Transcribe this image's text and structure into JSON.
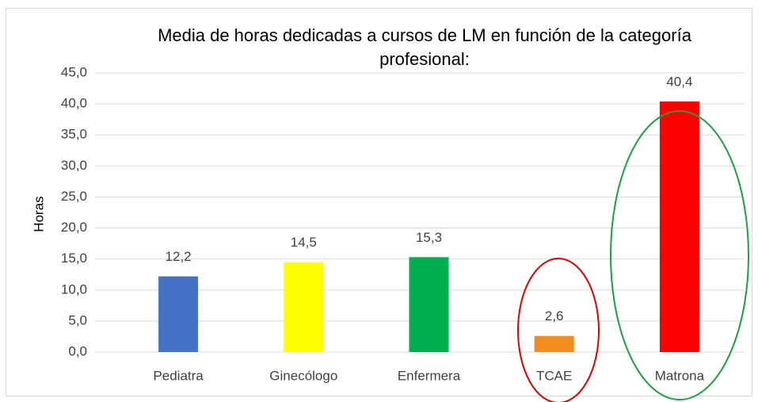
{
  "chart_data": {
    "type": "bar",
    "title": "Media de horas dedicadas a cursos de LM en función de la categoría profesional:",
    "y_label": "Horas",
    "categories": [
      "Pediatra",
      "Ginecólogo",
      "Enfermera",
      "TCAE",
      "Matrona"
    ],
    "values": [
      12.2,
      14.5,
      15.3,
      2.6,
      40.4
    ],
    "value_labels": [
      "12,2",
      "14,5",
      "15,3",
      "2,6",
      "40,4"
    ],
    "colors": [
      "#4472c4",
      "#ffff00",
      "#00b050",
      "#f28c1c",
      "#ff0000"
    ],
    "ylim": [
      0,
      45
    ],
    "yticks": [
      {
        "value": 0,
        "label": "0,0"
      },
      {
        "value": 5,
        "label": "5,0"
      },
      {
        "value": 10,
        "label": "10,0"
      },
      {
        "value": 15,
        "label": "15,0"
      },
      {
        "value": 20,
        "label": "20,0"
      },
      {
        "value": 25,
        "label": "25,0"
      },
      {
        "value": 30,
        "label": "30,0"
      },
      {
        "value": 35,
        "label": "35,0"
      },
      {
        "value": 40,
        "label": "40,0"
      },
      {
        "value": 45,
        "label": "45,0"
      }
    ],
    "grid": true
  }
}
